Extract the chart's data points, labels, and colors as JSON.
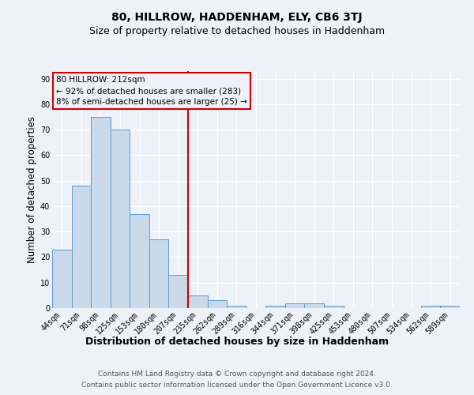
{
  "title": "80, HILLROW, HADDENHAM, ELY, CB6 3TJ",
  "subtitle": "Size of property relative to detached houses in Haddenham",
  "xlabel": "Distribution of detached houses by size in Haddenham",
  "ylabel": "Number of detached properties",
  "bar_labels": [
    "44sqm",
    "71sqm",
    "98sqm",
    "125sqm",
    "153sqm",
    "180sqm",
    "207sqm",
    "235sqm",
    "262sqm",
    "289sqm",
    "316sqm",
    "344sqm",
    "371sqm",
    "398sqm",
    "425sqm",
    "453sqm",
    "480sqm",
    "507sqm",
    "534sqm",
    "562sqm",
    "589sqm"
  ],
  "bar_values": [
    23,
    48,
    75,
    70,
    37,
    27,
    13,
    5,
    3,
    1,
    0,
    1,
    2,
    2,
    1,
    0,
    0,
    0,
    0,
    1,
    1
  ],
  "bar_color": "#c9d9ea",
  "bar_edgecolor": "#5b9bd5",
  "marker_index": 6,
  "marker_color": "#cc0000",
  "annotation_lines": [
    "80 HILLROW: 212sqm",
    "← 92% of detached houses are smaller (283)",
    "8% of semi-detached houses are larger (25) →"
  ],
  "annotation_box_color": "#cc0000",
  "ylim": [
    0,
    93
  ],
  "yticks": [
    0,
    10,
    20,
    30,
    40,
    50,
    60,
    70,
    80,
    90
  ],
  "footer_line1": "Contains HM Land Registry data © Crown copyright and database right 2024.",
  "footer_line2": "Contains public sector information licensed under the Open Government Licence v3.0.",
  "bg_color": "#eef2f8",
  "grid_color": "#ffffff",
  "title_fontsize": 10,
  "subtitle_fontsize": 9,
  "axis_label_fontsize": 8.5,
  "tick_fontsize": 7,
  "footer_fontsize": 6.5,
  "annotation_fontsize": 7.5
}
